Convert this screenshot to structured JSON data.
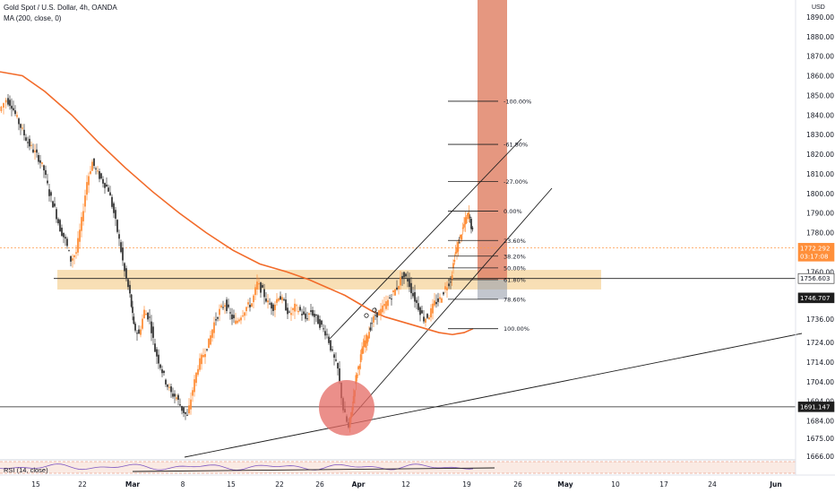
{
  "header": {
    "symbol_line": "Gold Spot / U.S. Dollar, 4h, OANDA",
    "ma_line": "MA (200, close, 0)",
    "currency": "USD"
  },
  "rsi": {
    "label": "RSI (14, close)"
  },
  "colors": {
    "up": "#ff8f3a",
    "down": "#3a3a3a",
    "ma": "#f26b2a",
    "zone": "#f7d9a8",
    "target_box": "#e0856a",
    "circle": "#e46a63",
    "line": "#1e1e1e"
  },
  "chart_data": {
    "type": "candlestick",
    "y_range": [
      1660,
      1900
    ],
    "y_ticks": [
      "1890.00",
      "1880.00",
      "1870.00",
      "1860.00",
      "1850.00",
      "1840.00",
      "1830.00",
      "1820.00",
      "1810.00",
      "1800.00",
      "1790.00",
      "1780.00",
      "1770.00",
      "1760.00",
      "1756.603",
      "1746.707",
      "1736.00",
      "1724.00",
      "1714.00",
      "1704.00",
      "1694.00",
      "1691.147",
      "1684.00",
      "1675.00",
      "1666.00"
    ],
    "x_ticks": [
      "15",
      "22",
      "Mar",
      "8",
      "15",
      "22",
      "26",
      "Apr",
      "12",
      "19",
      "26",
      "May",
      "10",
      "17",
      "24",
      "Jun"
    ],
    "price_tags": [
      {
        "value": 1772.292,
        "label": "1772.292",
        "sub": "03:17:08",
        "style": "current"
      },
      {
        "value": 1756.603,
        "label": "1756.603",
        "style": "dark"
      },
      {
        "value": 1746.707,
        "label": "1746.707",
        "style": "darkfill"
      },
      {
        "value": 1691.147,
        "label": "1691.147",
        "style": "darkfill"
      }
    ],
    "fib_levels": [
      {
        "label": "-100.00%",
        "value": 1847
      },
      {
        "label": "-61.80%",
        "value": 1825
      },
      {
        "label": "-27.00%",
        "value": 1806
      },
      {
        "label": "0.00%",
        "value": 1791
      },
      {
        "label": "23.60%",
        "value": 1776
      },
      {
        "label": "38.20%",
        "value": 1768
      },
      {
        "label": "50.00%",
        "value": 1762
      },
      {
        "label": "61.80%",
        "value": 1756
      },
      {
        "label": "78.60%",
        "value": 1746
      },
      {
        "label": "100.00%",
        "value": 1731
      }
    ],
    "support_zone": [
      1751,
      1761
    ],
    "horizontal_lines": [
      1756.603,
      1691.147
    ],
    "target_box": [
      1756,
      1905
    ],
    "ma_curve": [
      [
        0,
        1862
      ],
      [
        25,
        1860
      ],
      [
        50,
        1852
      ],
      [
        80,
        1840
      ],
      [
        110,
        1826
      ],
      [
        140,
        1813
      ],
      [
        170,
        1801
      ],
      [
        200,
        1790
      ],
      [
        230,
        1780
      ],
      [
        260,
        1771
      ],
      [
        290,
        1764
      ],
      [
        320,
        1760
      ],
      [
        345,
        1756
      ],
      [
        365,
        1752
      ],
      [
        385,
        1748
      ],
      [
        400,
        1744
      ],
      [
        415,
        1740
      ],
      [
        430,
        1737
      ],
      [
        445,
        1735
      ],
      [
        460,
        1733
      ],
      [
        475,
        1731
      ],
      [
        490,
        1729
      ],
      [
        505,
        1728
      ],
      [
        518,
        1729
      ],
      [
        528,
        1731
      ]
    ],
    "price_path": [
      [
        0,
        1842
      ],
      [
        8,
        1848
      ],
      [
        14,
        1845
      ],
      [
        20,
        1838
      ],
      [
        26,
        1832
      ],
      [
        32,
        1826
      ],
      [
        38,
        1822
      ],
      [
        44,
        1818
      ],
      [
        50,
        1812
      ],
      [
        56,
        1800
      ],
      [
        62,
        1792
      ],
      [
        68,
        1782
      ],
      [
        74,
        1776
      ],
      [
        80,
        1766
      ],
      [
        86,
        1770
      ],
      [
        92,
        1786
      ],
      [
        98,
        1806
      ],
      [
        104,
        1816
      ],
      [
        110,
        1810
      ],
      [
        116,
        1806
      ],
      [
        122,
        1802
      ],
      [
        128,
        1790
      ],
      [
        134,
        1776
      ],
      [
        140,
        1760
      ],
      [
        146,
        1748
      ],
      [
        150,
        1732
      ],
      [
        156,
        1728
      ],
      [
        162,
        1740
      ],
      [
        168,
        1736
      ],
      [
        174,
        1720
      ],
      [
        180,
        1712
      ],
      [
        186,
        1704
      ],
      [
        192,
        1698
      ],
      [
        198,
        1696
      ],
      [
        204,
        1690
      ],
      [
        210,
        1686
      ],
      [
        216,
        1700
      ],
      [
        222,
        1712
      ],
      [
        228,
        1718
      ],
      [
        234,
        1724
      ],
      [
        240,
        1734
      ],
      [
        246,
        1740
      ],
      [
        252,
        1744
      ],
      [
        258,
        1738
      ],
      [
        264,
        1734
      ],
      [
        270,
        1738
      ],
      [
        276,
        1742
      ],
      [
        282,
        1744
      ],
      [
        288,
        1754
      ],
      [
        294,
        1750
      ],
      [
        300,
        1744
      ],
      [
        306,
        1742
      ],
      [
        312,
        1748
      ],
      [
        318,
        1744
      ],
      [
        324,
        1738
      ],
      [
        330,
        1742
      ],
      [
        336,
        1740
      ],
      [
        342,
        1736
      ],
      [
        348,
        1740
      ],
      [
        354,
        1736
      ],
      [
        360,
        1732
      ],
      [
        366,
        1728
      ],
      [
        372,
        1718
      ],
      [
        378,
        1710
      ],
      [
        384,
        1690
      ],
      [
        390,
        1680
      ],
      [
        394,
        1692
      ],
      [
        398,
        1706
      ],
      [
        402,
        1714
      ],
      [
        406,
        1722
      ],
      [
        410,
        1726
      ],
      [
        414,
        1732
      ],
      [
        420,
        1738
      ],
      [
        426,
        1740
      ],
      [
        432,
        1744
      ],
      [
        438,
        1748
      ],
      [
        444,
        1752
      ],
      [
        450,
        1758
      ],
      [
        456,
        1756
      ],
      [
        462,
        1748
      ],
      [
        468,
        1742
      ],
      [
        474,
        1736
      ],
      [
        480,
        1738
      ],
      [
        486,
        1744
      ],
      [
        492,
        1746
      ],
      [
        498,
        1752
      ],
      [
        504,
        1756
      ],
      [
        508,
        1768
      ],
      [
        512,
        1774
      ],
      [
        516,
        1780
      ],
      [
        520,
        1786
      ],
      [
        524,
        1790
      ],
      [
        528,
        1780
      ]
    ]
  }
}
